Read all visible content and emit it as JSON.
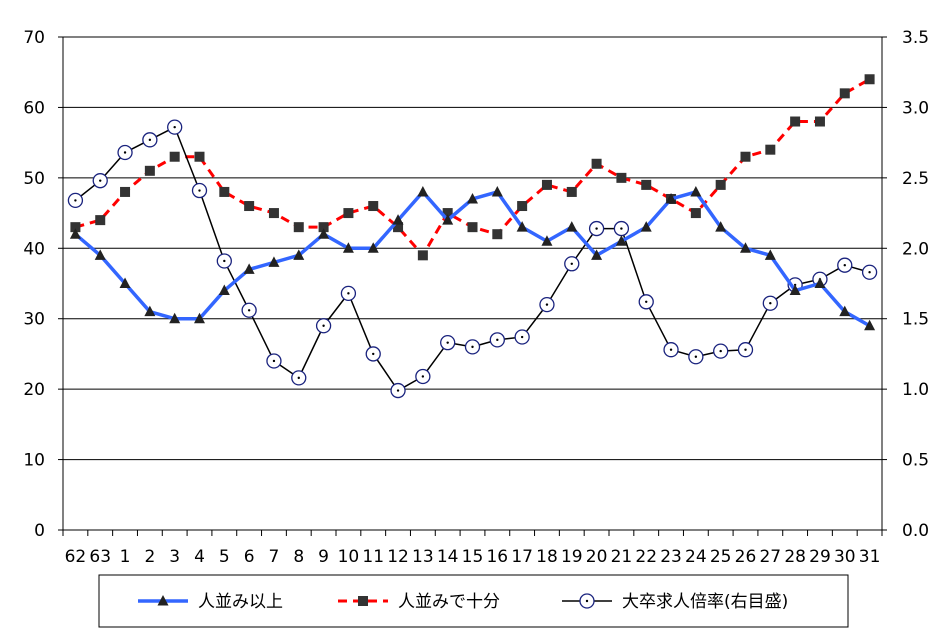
{
  "chart_data": {
    "type": "line",
    "categories": [
      "62",
      "63",
      "1",
      "2",
      "3",
      "4",
      "5",
      "6",
      "7",
      "8",
      "9",
      "10",
      "11",
      "12",
      "13",
      "14",
      "15",
      "16",
      "17",
      "18",
      "19",
      "20",
      "21",
      "22",
      "23",
      "24",
      "25",
      "26",
      "27",
      "28",
      "29",
      "30",
      "31"
    ],
    "y_left": {
      "lim": [
        0,
        70
      ],
      "ticks": [
        "0",
        "10",
        "20",
        "30",
        "40",
        "50",
        "60",
        "70"
      ]
    },
    "y_right": {
      "lim": [
        0,
        3.5
      ],
      "ticks": [
        "0.0",
        "0.5",
        "1.0",
        "1.5",
        "2.0",
        "2.5",
        "3.0",
        "3.5"
      ]
    },
    "grid": true,
    "legend_position": "bottom",
    "series": [
      {
        "name": "人並み以上",
        "axis": "left",
        "color": "#3366ff",
        "marker": "triangle",
        "values": [
          42,
          39,
          35,
          31,
          30,
          30,
          34,
          37,
          38,
          39,
          42,
          40,
          40,
          44,
          48,
          44,
          47,
          48,
          43,
          41,
          43,
          39,
          41,
          43,
          47,
          48,
          43,
          40,
          39,
          34,
          35,
          31,
          29
        ]
      },
      {
        "name": "人並みで十分",
        "axis": "left",
        "color": "#ff0000",
        "marker": "square",
        "values": [
          43,
          44,
          48,
          51,
          53,
          53,
          48,
          46,
          45,
          43,
          43,
          45,
          46,
          43,
          39,
          45,
          43,
          42,
          46,
          49,
          48,
          52,
          50,
          49,
          47,
          45,
          49,
          53,
          54,
          58,
          58,
          62,
          64
        ]
      },
      {
        "name": "大卒求人倍率(右目盛)",
        "axis": "right",
        "color": "#000000",
        "marker": "circle",
        "values": [
          2.34,
          2.48,
          2.68,
          2.77,
          2.86,
          2.41,
          1.91,
          1.56,
          1.2,
          1.08,
          1.45,
          1.68,
          1.25,
          0.99,
          1.09,
          1.33,
          1.3,
          1.35,
          1.37,
          1.6,
          1.89,
          2.14,
          2.14,
          1.62,
          1.28,
          1.23,
          1.27,
          1.28,
          1.61,
          1.74,
          1.78,
          1.88,
          1.83
        ]
      }
    ]
  }
}
